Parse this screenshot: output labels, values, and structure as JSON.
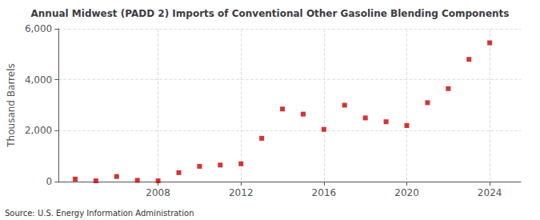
{
  "chart_data": {
    "type": "scatter",
    "title": "Annual Midwest (PADD 2) Imports of Conventional Other Gasoline Blending Components",
    "ylabel": "Thousand Barrels",
    "source": "Source: U.S. Energy Information Administration",
    "x": [
      2004,
      2005,
      2006,
      2007,
      2008,
      2009,
      2010,
      2011,
      2012,
      2013,
      2014,
      2015,
      2016,
      2017,
      2018,
      2019,
      2020,
      2021,
      2022,
      2023,
      2024
    ],
    "values": [
      100,
      30,
      200,
      50,
      30,
      350,
      600,
      650,
      700,
      1700,
      2850,
      2650,
      2050,
      3000,
      2500,
      2350,
      2200,
      3100,
      3650,
      4800,
      5450
    ],
    "color": "#cc0000",
    "marker": "square",
    "xlim": [
      2003.2,
      2025.5
    ],
    "xticks": [
      2008,
      2012,
      2016,
      2020,
      2024
    ],
    "ylim": [
      0,
      6000
    ],
    "yticks": [
      0,
      {
        "value": 2000,
        "label": "2,000"
      },
      {
        "value": 4000,
        "label": "4,000"
      },
      {
        "value": 6000,
        "label": "6,000"
      }
    ],
    "grid": true
  }
}
